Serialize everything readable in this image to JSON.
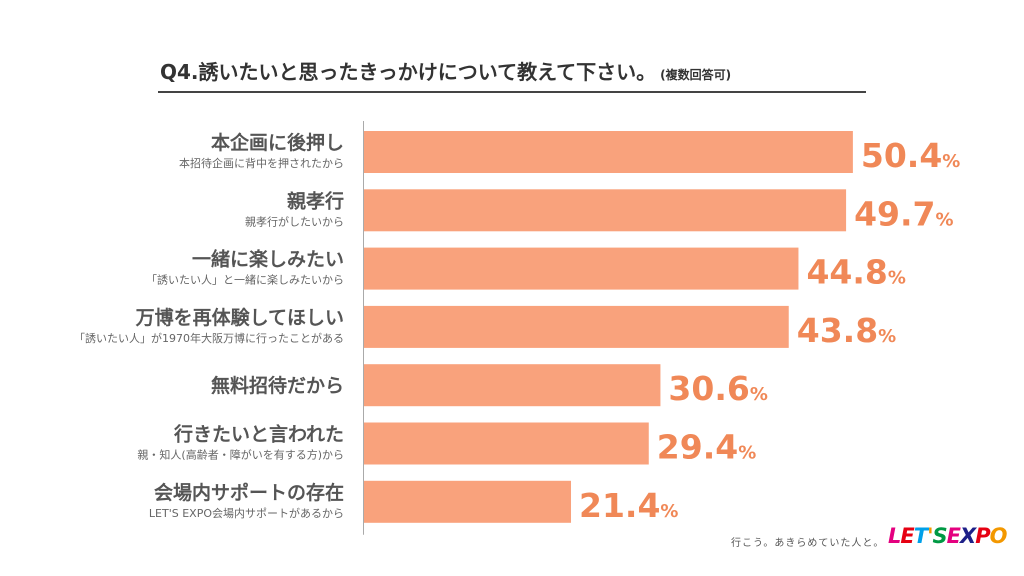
{
  "header": {
    "title": "Q4.誘いたいと思ったきっかけについて教えて下さい。",
    "note": "(複数回答可)"
  },
  "footer": {
    "tagline": "行こう。あきらめていた人と。",
    "logo": "LET'S EXPO"
  },
  "colors": {
    "bar": "#f9a27c",
    "value_text": "#f08857",
    "axis": "#aaaaaa",
    "logo_letters": [
      "#e4007f",
      "#e60012",
      "#00a0e9",
      "#f39800",
      "#009944",
      "#e4007f",
      "#1d2088",
      "#e60012",
      "#f39800"
    ]
  },
  "chart_data": {
    "type": "bar",
    "orientation": "horizontal",
    "value_suffix": "%",
    "categories": [
      {
        "label": "本企画に後押し",
        "sublabel": "本招待企画に背中を押されたから",
        "value": 50.4
      },
      {
        "label": "親孝行",
        "sublabel": "親孝行がしたいから",
        "value": 49.7
      },
      {
        "label": "一緒に楽しみたい",
        "sublabel": "「誘いたい人」と一緒に楽しみたいから",
        "value": 44.8
      },
      {
        "label": "万博を再体験してほしい",
        "sublabel": "「誘いたい人」が1970年大阪万博に行ったことがある",
        "value": 43.8
      },
      {
        "label": "無料招待だから",
        "sublabel": "",
        "value": 30.6
      },
      {
        "label": "行きたいと言われた",
        "sublabel": "親・知人(高齢者・障がいを有する方)から",
        "value": 29.4
      },
      {
        "label": "会場内サポートの存在",
        "sublabel": "LET'S EXPO会場内サポートがあるから",
        "value": 21.4
      }
    ],
    "grid": false,
    "legend": "none"
  }
}
